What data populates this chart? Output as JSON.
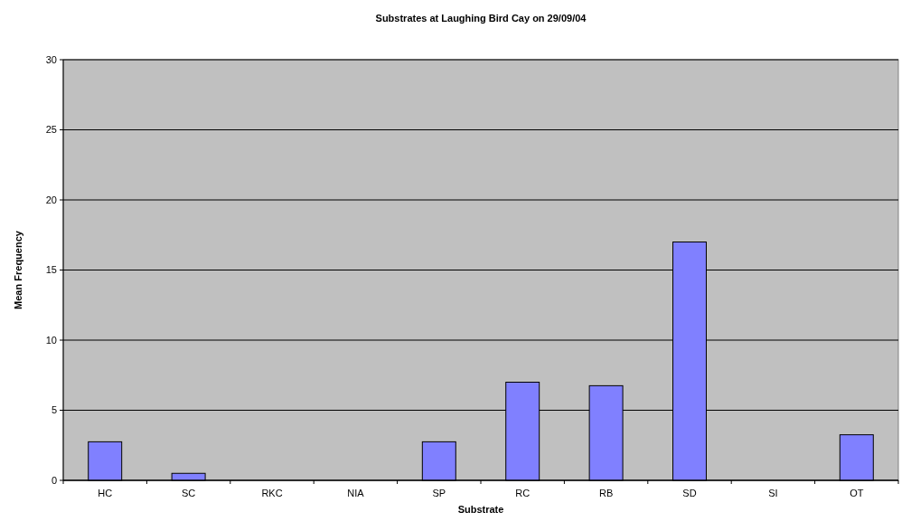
{
  "chart_data": {
    "type": "bar",
    "title": "Substrates at Laughing Bird Cay on 29/09/04",
    "xlabel": "Substrate",
    "ylabel": "Mean Frequency",
    "categories": [
      "HC",
      "SC",
      "RKC",
      "NIA",
      "SP",
      "RC",
      "RB",
      "SD",
      "SI",
      "OT"
    ],
    "values": [
      2.75,
      0.5,
      0,
      0,
      2.75,
      7,
      6.75,
      17,
      0,
      3.25
    ],
    "color": "#8080ff",
    "ylim": [
      0,
      30
    ],
    "yticks": [
      0,
      5,
      10,
      15,
      20,
      25,
      30
    ],
    "grid": "y"
  }
}
